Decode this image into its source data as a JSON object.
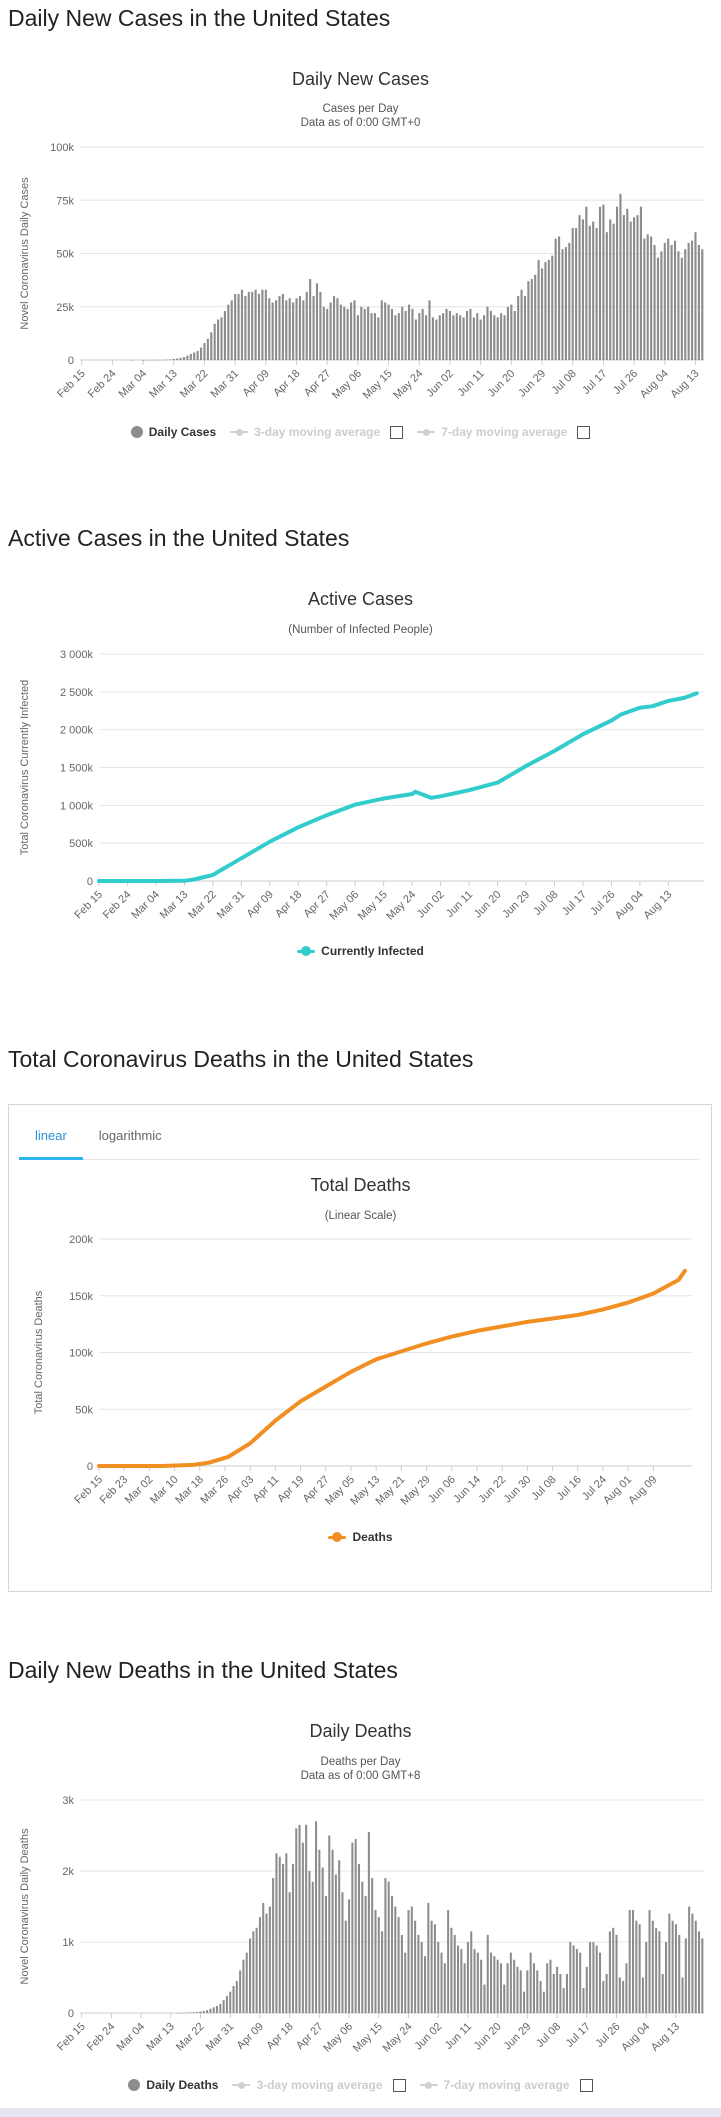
{
  "sections": {
    "daily_cases": "Daily New Cases in the United States",
    "active_cases": "Active Cases in the United States",
    "total_deaths": "Total Coronavirus Deaths in the United States",
    "daily_deaths": "Daily New Deaths in the United States"
  },
  "tabs": {
    "linear": "linear",
    "logarithmic": "logarithmic"
  },
  "legends": {
    "daily_cases": "Daily Cases",
    "ma3": "3-day moving average",
    "ma7": "7-day moving average",
    "active": "Currently Infected",
    "deaths": "Deaths",
    "daily_deaths": "Daily Deaths"
  },
  "colors": {
    "bar": "#8c8c8c",
    "active": "#33cccc",
    "deaths": "#f28f22",
    "grid": "#e6e6e6",
    "tab_accent": "#2fb3ee"
  },
  "chart_data": [
    {
      "id": "daily_cases",
      "type": "bar",
      "title": "Daily New Cases",
      "subtitle1": "Cases per Day",
      "subtitle2": "Data as of 0:00 GMT+0",
      "ylabel": "Novel Coronavirus Daily Cases",
      "xlabel": "",
      "ylim": [
        0,
        100000
      ],
      "yticks": [
        "0",
        "25k",
        "50k",
        "75k",
        "100k"
      ],
      "xticks": [
        "Feb 15",
        "Feb 24",
        "Mar 04",
        "Mar 13",
        "Mar 22",
        "Mar 31",
        "Apr 09",
        "Apr 18",
        "Apr 27",
        "May 06",
        "May 15",
        "May 24",
        "Jun 02",
        "Jun 11",
        "Jun 20",
        "Jun 29",
        "Jul 08",
        "Jul 17",
        "Jul 26",
        "Aug 04",
        "Aug 13"
      ],
      "start": "Feb 15",
      "step_days": 1,
      "values": [
        0,
        0,
        0,
        0,
        0,
        0,
        0,
        0,
        0,
        0,
        0,
        0,
        0,
        0,
        0,
        20,
        0,
        0,
        10,
        20,
        30,
        40,
        60,
        80,
        100,
        200,
        300,
        500,
        700,
        1000,
        1400,
        2100,
        2800,
        3500,
        4200,
        5800,
        8000,
        10000,
        13000,
        17000,
        19000,
        20000,
        23000,
        26000,
        28000,
        31000,
        31000,
        33000,
        30000,
        32000,
        32000,
        33000,
        31000,
        33000,
        33000,
        29000,
        27000,
        28000,
        30000,
        31000,
        28000,
        29000,
        27000,
        29000,
        30000,
        28000,
        32000,
        38000,
        30000,
        36000,
        32000,
        25000,
        24000,
        27000,
        30000,
        29000,
        26000,
        25000,
        24000,
        27000,
        28000,
        21000,
        25000,
        24000,
        25000,
        22000,
        22000,
        20000,
        28000,
        27000,
        26000,
        24000,
        21000,
        22000,
        25000,
        23000,
        26000,
        24000,
        19000,
        22000,
        24000,
        21000,
        28000,
        20000,
        19000,
        21000,
        22000,
        24000,
        23000,
        21000,
        22000,
        21000,
        20000,
        23000,
        24000,
        20000,
        22000,
        19000,
        21000,
        25000,
        23000,
        21000,
        20000,
        22000,
        21000,
        25000,
        26000,
        23000,
        30000,
        33000,
        30000,
        37000,
        38000,
        40000,
        47000,
        43000,
        46000,
        47000,
        49000,
        57000,
        58000,
        52000,
        53000,
        55000,
        62000,
        62000,
        68000,
        66000,
        72000,
        63000,
        65000,
        62000,
        72000,
        73000,
        60000,
        66000,
        64000,
        72000,
        78000,
        68000,
        71000,
        65000,
        67000,
        68000,
        72000,
        57000,
        59000,
        58000,
        54000,
        48000,
        51000,
        55000,
        57000,
        54000,
        56000,
        51000,
        48000,
        52000,
        55000,
        56000,
        60000,
        54000,
        52000
      ]
    },
    {
      "id": "active_cases",
      "type": "line",
      "series_name": "Currently Infected",
      "title": "Active Cases",
      "subtitle1": "(Number of Infected People)",
      "ylabel": "Total Coronavirus Currently Infected",
      "ylim": [
        0,
        3000000
      ],
      "yticks": [
        "0",
        "500k",
        "1 000k",
        "1 500k",
        "2 000k",
        "2 500k",
        "3 000k"
      ],
      "xticks": [
        "Feb 15",
        "Feb 24",
        "Mar 04",
        "Mar 13",
        "Mar 22",
        "Mar 31",
        "Apr 09",
        "Apr 18",
        "Apr 27",
        "May 06",
        "May 15",
        "May 24",
        "Jun 02",
        "Jun 11",
        "Jun 20",
        "Jun 29",
        "Jul 08",
        "Jul 17",
        "Jul 26",
        "Aug 04",
        "Aug 13"
      ],
      "x": [
        0,
        9,
        18,
        27,
        30,
        36,
        45,
        54,
        63,
        72,
        81,
        90,
        99,
        100,
        105,
        108,
        117,
        126,
        135,
        144,
        153,
        162,
        165,
        171,
        175,
        180,
        185,
        189
      ],
      "values": [
        10,
        20,
        50,
        2000,
        20000,
        80000,
        300000,
        520000,
        710000,
        870000,
        1010000,
        1090000,
        1150000,
        1180000,
        1100000,
        1120000,
        1200000,
        1300000,
        1520000,
        1720000,
        1940000,
        2120000,
        2200000,
        2290000,
        2310000,
        2380000,
        2420000,
        2480000
      ]
    },
    {
      "id": "total_deaths",
      "type": "line",
      "series_name": "Deaths",
      "title": "Total Deaths",
      "subtitle1": "(Linear Scale)",
      "ylabel": "Total Coronavirus Deaths",
      "ylim": [
        0,
        200000
      ],
      "yticks": [
        "0",
        "50k",
        "100k",
        "150k",
        "200k"
      ],
      "xticks": [
        "Feb 15",
        "Feb 23",
        "Mar 02",
        "Mar 10",
        "Mar 18",
        "Mar 26",
        "Apr 03",
        "Apr 11",
        "Apr 19",
        "Apr 27",
        "May 05",
        "May 13",
        "May 21",
        "May 29",
        "Jun 06",
        "Jun 14",
        "Jun 22",
        "Jun 30",
        "Jul 08",
        "Jul 16",
        "Jul 24",
        "Aug 01",
        "Aug 09"
      ],
      "x": [
        0,
        20,
        30,
        35,
        41,
        48,
        56,
        64,
        72,
        80,
        88,
        96,
        104,
        112,
        120,
        128,
        136,
        144,
        152,
        160,
        168,
        176,
        184,
        186
      ],
      "values": [
        0,
        0,
        1000,
        3000,
        8000,
        20000,
        40000,
        57000,
        70000,
        83000,
        94000,
        101000,
        108000,
        114000,
        119000,
        123000,
        127000,
        130000,
        133000,
        138000,
        144000,
        152000,
        164000,
        172000
      ]
    },
    {
      "id": "daily_deaths",
      "type": "bar",
      "title": "Daily Deaths",
      "subtitle1": "Deaths per Day",
      "subtitle2": "Data as of 0:00 GMT+8",
      "ylabel": "Novel Coronavirus Daily Deaths",
      "ylim": [
        0,
        3000
      ],
      "yticks": [
        "0",
        "1k",
        "2k",
        "3k"
      ],
      "xticks": [
        "Feb 15",
        "Feb 24",
        "Mar 04",
        "Mar 13",
        "Mar 22",
        "Mar 31",
        "Apr 09",
        "Apr 18",
        "Apr 27",
        "May 06",
        "May 15",
        "May 24",
        "Jun 02",
        "Jun 11",
        "Jun 20",
        "Jun 29",
        "Jul 08",
        "Jul 17",
        "Jul 26",
        "Aug 04",
        "Aug 13"
      ],
      "start": "Feb 15",
      "step_days": 1,
      "values": [
        0,
        0,
        0,
        0,
        0,
        0,
        0,
        0,
        0,
        0,
        0,
        0,
        0,
        0,
        0,
        0,
        0,
        0,
        0,
        0,
        0,
        0,
        0,
        0,
        0,
        0,
        0,
        0,
        0,
        1,
        2,
        3,
        5,
        8,
        10,
        15,
        20,
        30,
        40,
        60,
        80,
        100,
        130,
        180,
        240,
        300,
        380,
        450,
        600,
        750,
        850,
        1050,
        1150,
        1200,
        1350,
        1550,
        1400,
        1500,
        1900,
        2250,
        2200,
        2100,
        2250,
        1700,
        2100,
        2600,
        2650,
        2400,
        2650,
        2000,
        1850,
        2700,
        2300,
        2050,
        1650,
        2500,
        2300,
        1950,
        2150,
        1700,
        1300,
        1600,
        2400,
        2450,
        2100,
        1850,
        1650,
        2550,
        1900,
        1450,
        1350,
        1150,
        1900,
        1850,
        1650,
        1500,
        1350,
        1100,
        850,
        1450,
        1500,
        1300,
        1100,
        1000,
        800,
        1550,
        1300,
        1250,
        1000,
        850,
        700,
        1450,
        1200,
        1100,
        950,
        900,
        700,
        1000,
        1150,
        900,
        850,
        750,
        400,
        1100,
        850,
        800,
        750,
        700,
        400,
        700,
        850,
        750,
        650,
        600,
        300,
        600,
        850,
        700,
        600,
        450,
        300,
        700,
        750,
        550,
        650,
        550,
        350,
        550,
        1000,
        950,
        900,
        850,
        350,
        650,
        1000,
        1000,
        950,
        850,
        450,
        550,
        1150,
        1200,
        1100,
        500,
        450,
        700,
        1450,
        1450,
        1300,
        1250,
        500,
        1000,
        1450,
        1300,
        1200,
        1150,
        550,
        1000,
        1400,
        1300,
        1250,
        1100,
        500,
        1050,
        1500,
        1400,
        1300,
        1150,
        1050
      ]
    }
  ]
}
